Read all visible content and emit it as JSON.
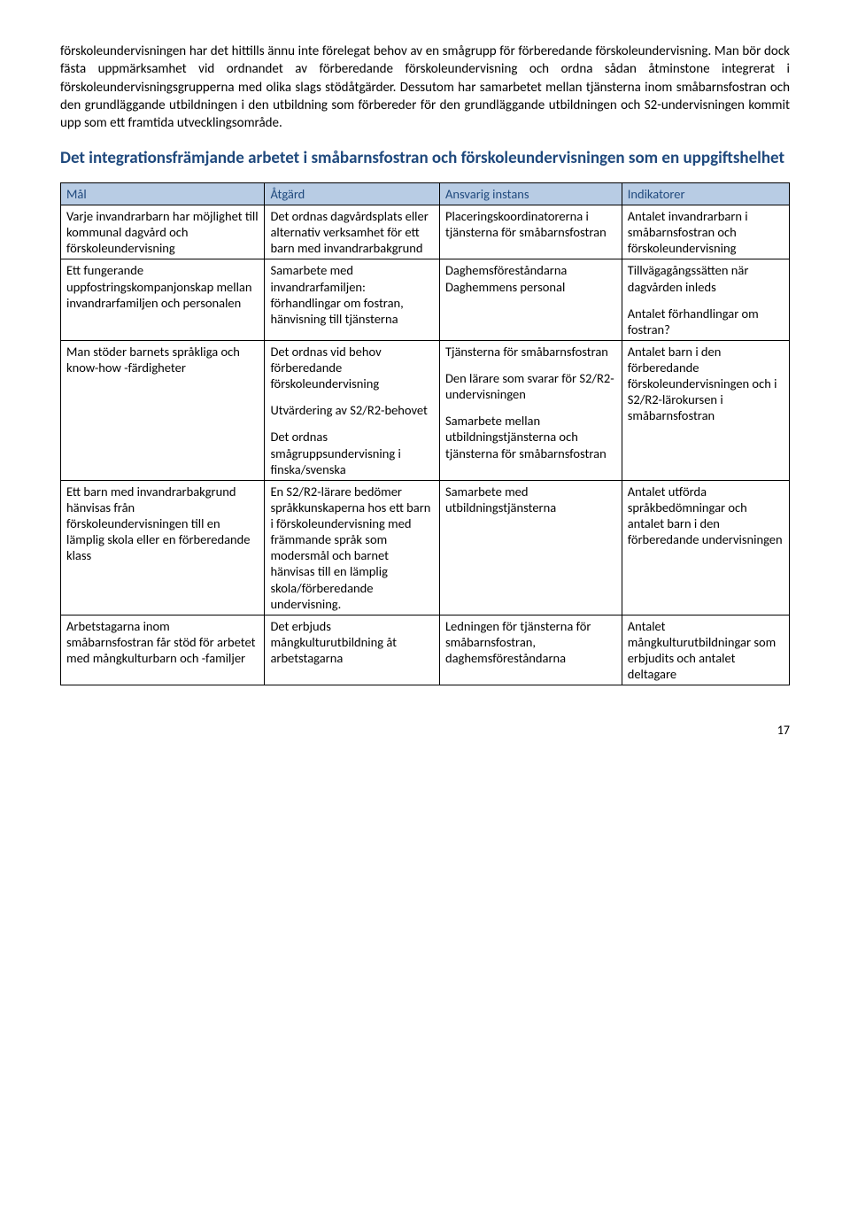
{
  "paragraphs": {
    "p1": "förskoleundervisningen har det hittills ännu inte förelegat behov av en smågrupp för förberedande förskoleundervisning. Man bör dock fästa uppmärksamhet vid ordnandet av förberedande förskoleundervisning och ordna sådan åtminstone integrerat i förskoleundervisningsgrupperna med olika slags stödåtgärder. Dessutom har samarbetet mellan tjänsterna inom småbarnsfostran och den grundläggande utbildningen i den utbildning som förbereder för den grundläggande utbildningen och S2-undervisningen kommit upp som ett framtida utvecklingsområde."
  },
  "heading": {
    "text": "Det integrationsfrämjande arbetet i småbarnsfostran och förskoleundervisningen som en uppgiftshelhet",
    "color": "#1f497d",
    "fontsize": 19
  },
  "table": {
    "header_bg": "#b8cce4",
    "header_color": "#1f497d",
    "columns": [
      "Mål",
      "Åtgärd",
      "Ansvarig instans",
      "Indikatorer"
    ],
    "rows": [
      {
        "mal": [
          "Varje invandrarbarn har möjlighet till kommunal dagvård och förskoleundervisning"
        ],
        "atgard": [
          "Det ordnas dagvårdsplats eller alternativ verksamhet för ett barn med invandrarbakgrund"
        ],
        "ansvarig": [
          "Placeringskoordinatorerna i tjänsterna för småbarnsfostran"
        ],
        "indikatorer": [
          "Antalet invandrarbarn i småbarnsfostran och förskoleundervisning"
        ]
      },
      {
        "mal": [
          "Ett fungerande uppfostringskompanjonskap mellan invandrarfamiljen och personalen"
        ],
        "atgard": [
          "Samarbete med invandrarfamiljen: förhandlingar om fostran, hänvisning till tjänsterna"
        ],
        "ansvarig": [
          "Daghemsföreståndarna Daghemmens personal"
        ],
        "indikatorer": [
          "Tillvägagångssätten när dagvården inleds",
          "Antalet förhandlingar om fostran?"
        ]
      },
      {
        "mal": [
          "Man stöder barnets språkliga och know-how -färdigheter"
        ],
        "atgard": [
          "Det ordnas vid behov förberedande förskoleundervisning",
          "Utvärdering av S2/R2-behovet",
          "Det ordnas smågruppsundervisning i finska/svenska"
        ],
        "ansvarig": [
          "Tjänsterna för småbarnsfostran",
          "Den lärare som svarar för S2/R2-undervisningen",
          "Samarbete mellan utbildningstjänsterna och tjänsterna för småbarnsfostran"
        ],
        "indikatorer": [
          "Antalet barn i den förberedande förskoleundervisningen och i S2/R2-lärokursen i småbarnsfostran"
        ]
      },
      {
        "mal": [
          "Ett barn med invandrarbakgrund hänvisas från förskoleundervisningen till en lämplig skola eller en förberedande klass"
        ],
        "atgard": [
          "En S2/R2-lärare bedömer språkkunskaperna hos ett barn i förskoleundervisning med främmande språk som modersmål och barnet hänvisas till en lämplig skola/förberedande undervisning."
        ],
        "ansvarig": [
          "Samarbete med utbildningstjänsterna"
        ],
        "indikatorer": [
          "Antalet utförda språkbedömningar och antalet barn i den förberedande undervisningen"
        ]
      },
      {
        "mal": [
          "Arbetstagarna inom småbarnsfostran får stöd för arbetet med mångkulturbarn och -familjer"
        ],
        "atgard": [
          "Det erbjuds mångkulturutbildning åt arbetstagarna"
        ],
        "ansvarig": [
          "Ledningen för tjänsterna för småbarnsfostran, daghemsföreståndarna"
        ],
        "indikatorer": [
          "Antalet mångkulturutbildningar som erbjudits och antalet deltagare"
        ]
      }
    ]
  },
  "page_number": "17"
}
